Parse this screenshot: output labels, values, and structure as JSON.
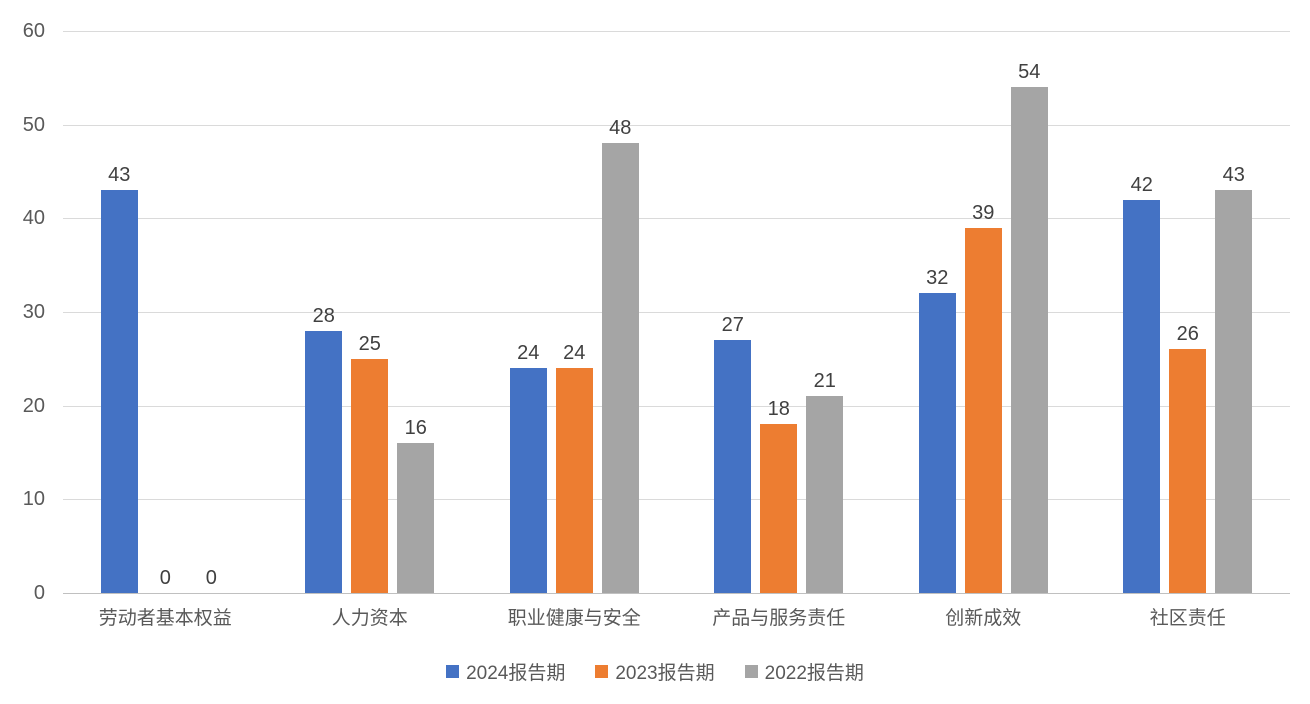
{
  "chart_data": {
    "type": "bar",
    "title": "",
    "categories": [
      "劳动者基本权益",
      "人力资本",
      "职业健康与安全",
      "产品与服务责任",
      "创新成效",
      "社区责任"
    ],
    "series": [
      {
        "name": "2024报告期",
        "color": "#4472C4",
        "values": [
          43,
          28,
          24,
          27,
          32,
          42
        ]
      },
      {
        "name": "2023报告期",
        "color": "#ED7D31",
        "values": [
          0,
          25,
          24,
          18,
          39,
          26
        ]
      },
      {
        "name": "2022报告期",
        "color": "#A5A5A5",
        "values": [
          0,
          16,
          48,
          21,
          54,
          43
        ]
      }
    ],
    "xlabel": "",
    "ylabel": "",
    "ylim": [
      0,
      60
    ],
    "yticks": [
      0,
      10,
      20,
      30,
      40,
      50,
      60
    ],
    "grid": true,
    "data_labels": true,
    "legend_position": "bottom"
  },
  "colors": {
    "background": "#FFFFFF",
    "gridline": "#DADADA",
    "axis_line": "#C0C0C0",
    "tick_label": "#595959",
    "data_label": "#404040",
    "category_label": "#595959",
    "legend_label": "#595959"
  }
}
